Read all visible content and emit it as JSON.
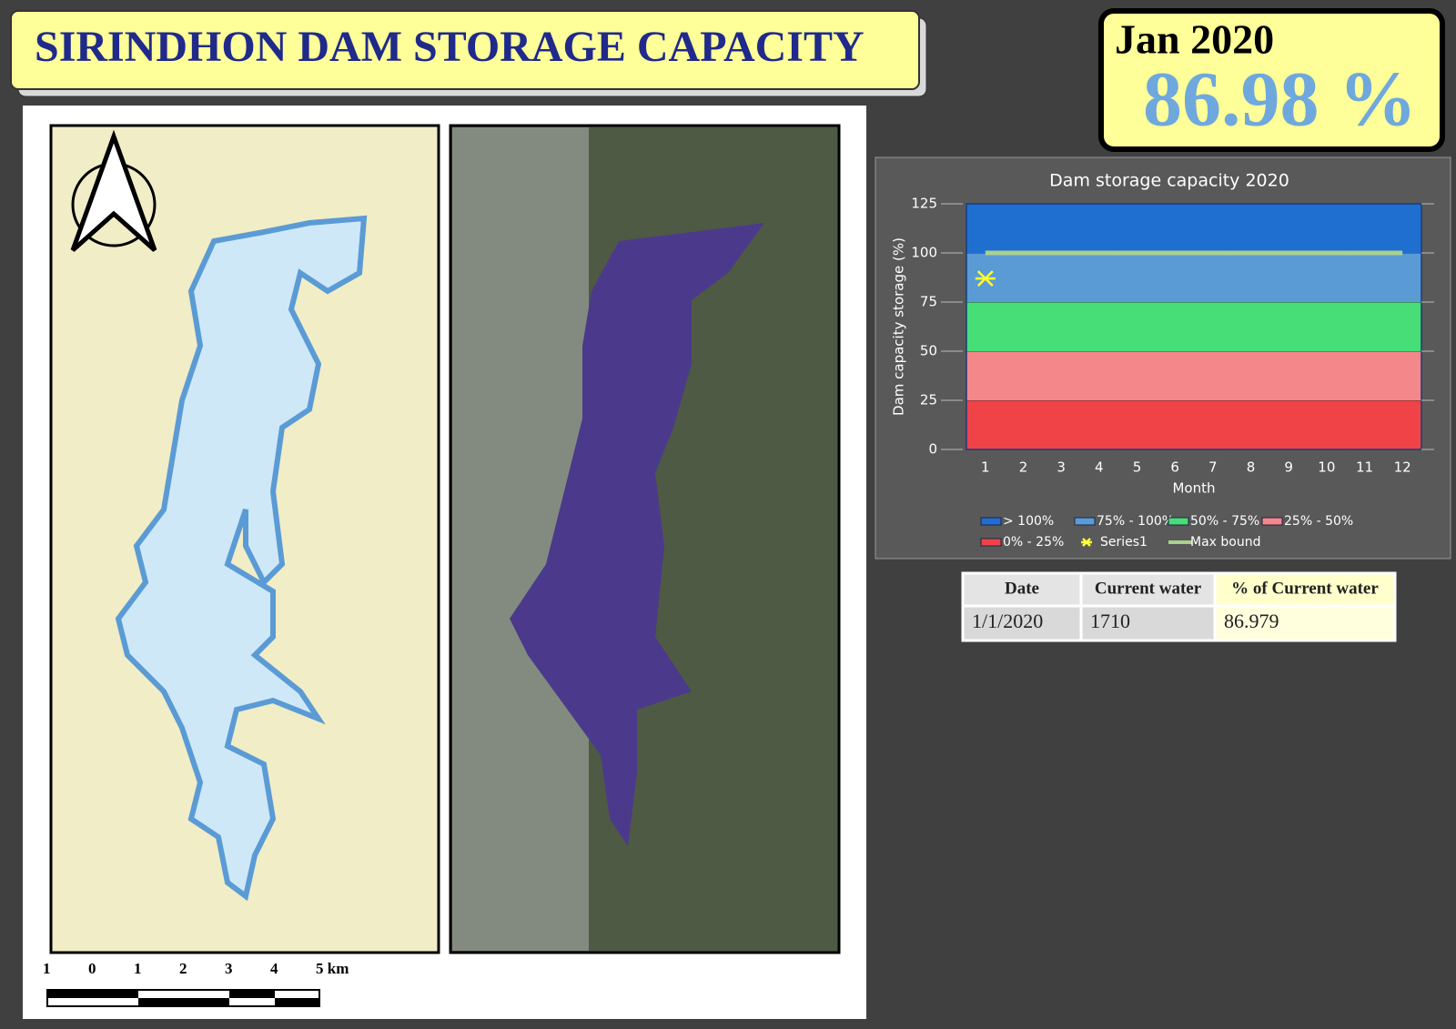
{
  "header": {
    "title": "SIRINDHON DAM STORAGE CAPACITY"
  },
  "status": {
    "date": "Jan 2020",
    "percent": "86.98 %"
  },
  "scale_bar": {
    "labels": [
      "1",
      "0",
      "1",
      "2",
      "3",
      "4",
      "5 km"
    ]
  },
  "chart_data": {
    "type": "bar",
    "title": "Dam storage capacity 2020",
    "x_label": "Month",
    "y_label": "Dam capacity storage (%)",
    "categories": [
      "1",
      "2",
      "3",
      "4",
      "5",
      "6",
      "7",
      "8",
      "9",
      "10",
      "11",
      "12"
    ],
    "ylim": [
      0,
      125
    ],
    "yticks": [
      0,
      25,
      50,
      75,
      100,
      125
    ],
    "series": [
      {
        "name": "> 100%",
        "type": "bar",
        "color": "#1f6fd1",
        "values": [
          25,
          25,
          25,
          25,
          25,
          25,
          25,
          25,
          25,
          25,
          25,
          25
        ]
      },
      {
        "name": "75% - 100%",
        "type": "bar",
        "color": "#5b9bd5",
        "values": [
          25,
          25,
          25,
          25,
          25,
          25,
          25,
          25,
          25,
          25,
          25,
          25
        ]
      },
      {
        "name": "50% - 75%",
        "type": "bar",
        "color": "#47dd77",
        "values": [
          25,
          25,
          25,
          25,
          25,
          25,
          25,
          25,
          25,
          25,
          25,
          25
        ]
      },
      {
        "name": "25% - 50%",
        "type": "bar",
        "color": "#f4878a",
        "values": [
          25,
          25,
          25,
          25,
          25,
          25,
          25,
          25,
          25,
          25,
          25,
          25
        ]
      },
      {
        "name": "0% - 25%",
        "type": "bar",
        "color": "#f04348",
        "values": [
          25,
          25,
          25,
          25,
          25,
          25,
          25,
          25,
          25,
          25,
          25,
          25
        ]
      },
      {
        "name": "Series1",
        "type": "scatter",
        "color": "#ffff33",
        "values": [
          86.98,
          null,
          null,
          null,
          null,
          null,
          null,
          null,
          null,
          null,
          null,
          null
        ]
      },
      {
        "name": "Max bound",
        "type": "line",
        "color": "#a9d18e",
        "values": [
          100,
          100,
          100,
          100,
          100,
          100,
          100,
          100,
          100,
          100,
          100,
          100
        ]
      }
    ]
  },
  "table": {
    "header": [
      "Date",
      "Current water",
      "% of Current water"
    ],
    "rows": [
      [
        "1/1/2020",
        "1710",
        "86.979"
      ]
    ]
  }
}
